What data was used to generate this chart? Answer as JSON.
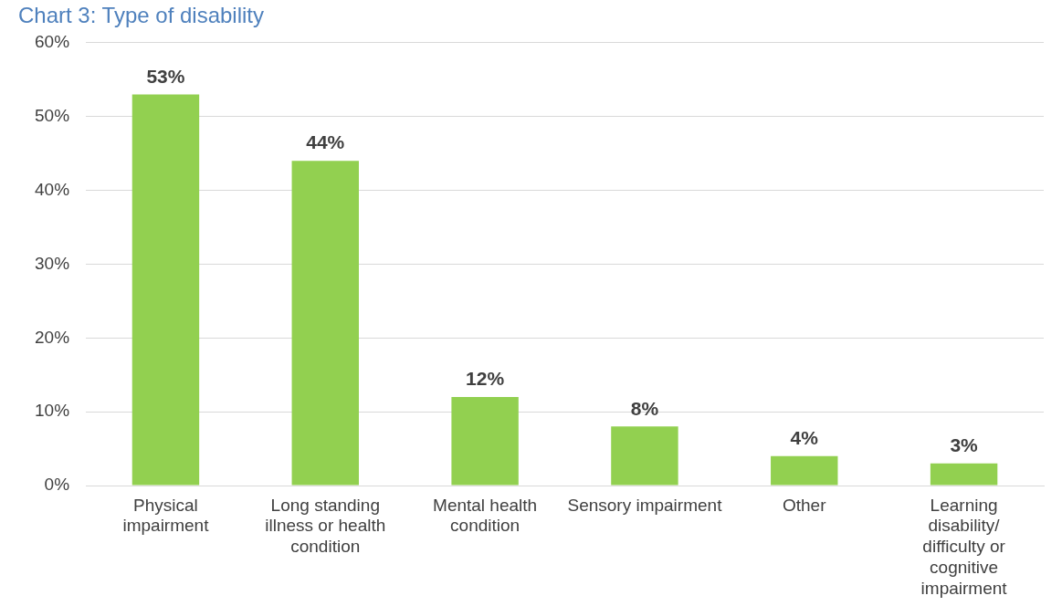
{
  "chart_data": {
    "type": "bar",
    "title": "Chart 3: Type of disability",
    "categories": [
      "Physical impairment",
      "Long standing illness or health condition",
      "Mental health condition",
      "Sensory impairment",
      "Other",
      "Learning disability/difficulty or cognitive impairment"
    ],
    "values": [
      53,
      44,
      12,
      8,
      4,
      3
    ],
    "value_labels": [
      "53%",
      "44%",
      "12%",
      "8%",
      "4%",
      "3%"
    ],
    "color": "#92d050",
    "ylim": [
      0,
      60
    ],
    "yticks": [
      {
        "value": 0,
        "label": "0%"
      },
      {
        "value": 10,
        "label": "10%"
      },
      {
        "value": 20,
        "label": "20%"
      },
      {
        "value": 30,
        "label": "30%"
      },
      {
        "value": 40,
        "label": "40%"
      },
      {
        "value": 50,
        "label": "50%"
      },
      {
        "value": 60,
        "label": "60%"
      }
    ],
    "grid": "y",
    "legend": false
  }
}
